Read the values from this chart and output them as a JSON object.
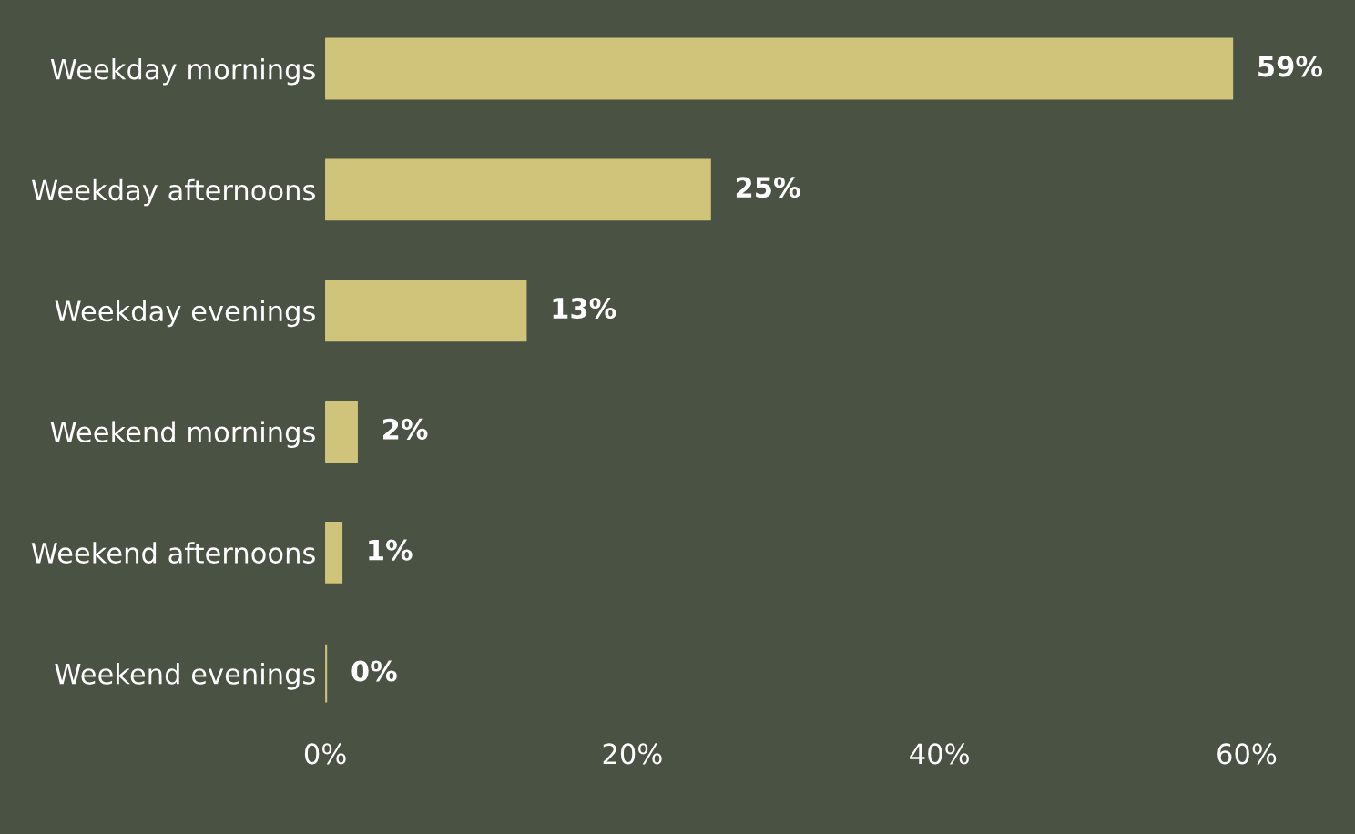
{
  "chart_data": {
    "type": "bar",
    "orientation": "horizontal",
    "categories": [
      "Weekday mornings",
      "Weekday afternoons",
      "Weekday evenings",
      "Weekend mornings",
      "Weekend afternoons",
      "Weekend evenings"
    ],
    "values": [
      59,
      25,
      13,
      2,
      1,
      0
    ],
    "value_labels": [
      "59%",
      "25%",
      "13%",
      "2%",
      "1%",
      "0%"
    ],
    "color": "#cfc47a",
    "xlim": [
      0,
      60
    ],
    "xticks": [
      {
        "value": 0,
        "label": "0%"
      },
      {
        "value": 20,
        "label": "20%"
      },
      {
        "value": 40,
        "label": "40%"
      },
      {
        "value": 60,
        "label": "60%"
      }
    ],
    "grid": false,
    "legend": false
  }
}
